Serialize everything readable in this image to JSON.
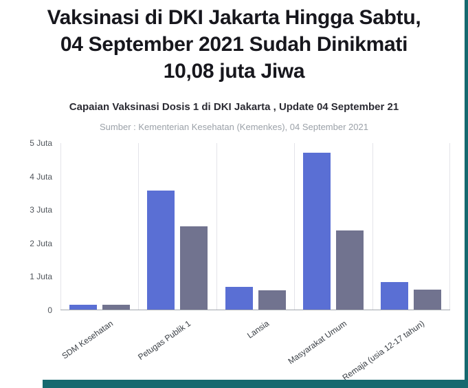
{
  "header": {
    "title_lines": [
      "Vaksinasi di DKI Jakarta Hingga Sabtu,",
      "04 September 2021 Sudah Dinikmati",
      "10,08 juta Jiwa"
    ]
  },
  "frame": {
    "border_color": "#16696f"
  },
  "chart_data": {
    "type": "bar",
    "title": "Capaian Vaksinasi Dosis 1 di DKI Jakarta , Update 04 September 21",
    "subtitle": "Sumber : Kementerian Kesehatan (Kemenkes), 04 September 2021",
    "categories": [
      "SDM Kesehatan",
      "Petugas Publik 1",
      "Lansia",
      "Masyarakat Umum",
      "Remaja (usia 12-17 tahun)"
    ],
    "series": [
      {
        "name": "series-1-blue",
        "color": "#5a6fd4",
        "values": [
          0.15,
          3.55,
          0.68,
          4.7,
          0.82
        ]
      },
      {
        "name": "series-2-gray",
        "color": "#71738f",
        "values": [
          0.15,
          2.5,
          0.57,
          2.37,
          0.6
        ]
      }
    ],
    "y_ticks": [
      {
        "label": "5 Juta",
        "value": 5
      },
      {
        "label": "4 Juta",
        "value": 4
      },
      {
        "label": "3 Juta",
        "value": 3
      },
      {
        "label": "2 Juta",
        "value": 2
      },
      {
        "label": "1 Juta",
        "value": 1
      },
      {
        "label": "0",
        "value": 0
      }
    ],
    "ylim": [
      0,
      5
    ],
    "unit": "Juta",
    "grid": "vertical-only",
    "legend": "none"
  }
}
